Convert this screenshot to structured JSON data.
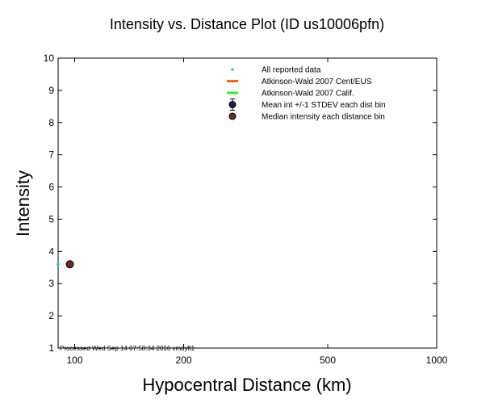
{
  "chart_data": {
    "type": "scatter",
    "title": "Intensity vs. Distance Plot (ID us10006pfn)",
    "xlabel": "Hypocentral Distance (km)",
    "ylabel": "Intensity",
    "xscale": "log",
    "xlim": [
      90,
      1000
    ],
    "ylim": [
      1,
      10
    ],
    "x_ticks": [
      {
        "value": 100,
        "label": "100"
      },
      {
        "value": 200,
        "label": "200"
      },
      {
        "value": 500,
        "label": "500"
      },
      {
        "value": 1000,
        "label": "1000"
      }
    ],
    "y_ticks": [
      {
        "value": 1,
        "label": "1"
      },
      {
        "value": 2,
        "label": "2"
      },
      {
        "value": 3,
        "label": "3"
      },
      {
        "value": 4,
        "label": "4"
      },
      {
        "value": 5,
        "label": "5"
      },
      {
        "value": 6,
        "label": "6"
      },
      {
        "value": 7,
        "label": "7"
      },
      {
        "value": 8,
        "label": "8"
      },
      {
        "value": 9,
        "label": "9"
      },
      {
        "value": 10,
        "label": "10"
      }
    ],
    "legend_position": "top-right",
    "legend": [
      {
        "label": "All reported data",
        "marker": "dot",
        "color": "#33dd77"
      },
      {
        "label": "Atkinson-Wald 2007 Cent/EUS",
        "marker": "line",
        "color": "#ff6600"
      },
      {
        "label": "Atkinson-Wald 2007 Calif.",
        "marker": "line",
        "color": "#33ee33"
      },
      {
        "label": "Mean int +/-1 STDEV each dist bin",
        "marker": "circle-errorbar",
        "color": "#1a1a55"
      },
      {
        "label": "Median intensity each distance bin",
        "marker": "circle",
        "color": "#6b2a22"
      }
    ],
    "series": [
      {
        "name": "All reported data",
        "points": [
          {
            "x": 90,
            "y": 3.6
          }
        ]
      },
      {
        "name": "Median intensity each distance bin",
        "points": [
          {
            "x": 97,
            "y": 3.6
          }
        ]
      }
    ],
    "footer": "Processed Wed Sep 14 07:58:34 2016 vmdyfi1",
    "grid": false
  }
}
